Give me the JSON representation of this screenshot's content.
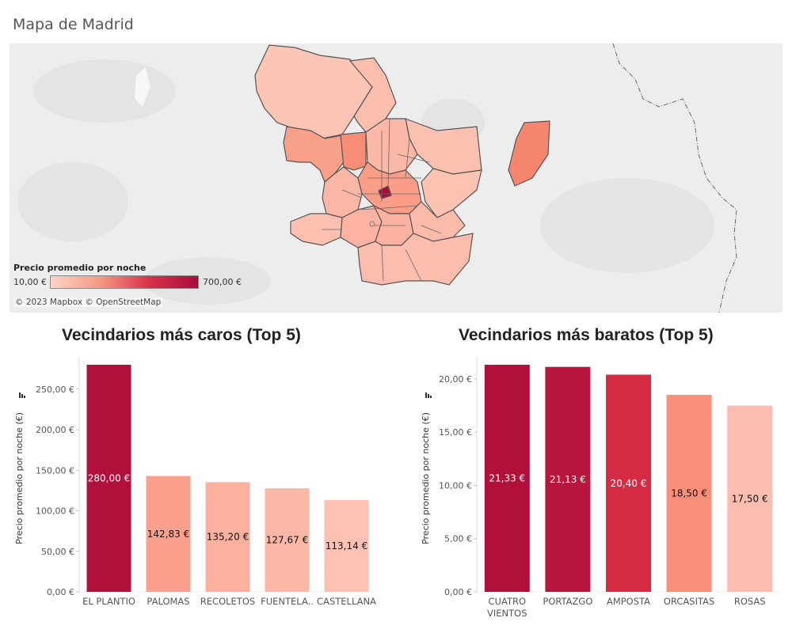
{
  "dashboard": {
    "title": "Mapa de Madrid"
  },
  "map": {
    "legend_title": "Precio promedio por noche",
    "legend_min": "10,00 €",
    "legend_max": "700,00 €",
    "attribution": "© 2023 Mapbox © OpenStreetMap",
    "color_scale": [
      "#fdd4c6",
      "#f49a84",
      "#d8324a",
      "#a80d3a"
    ]
  },
  "chart_data": [
    {
      "type": "bar",
      "title": "Vecindarios más caros (Top 5)",
      "ylabel": "Precio promedio por noche (€)",
      "categories": [
        [
          "EL PLANTIO"
        ],
        [
          "PALOMAS"
        ],
        [
          "RECOLETOS"
        ],
        [
          "FUENTELA.."
        ],
        [
          "CASTELLANA"
        ]
      ],
      "values": [
        280.0,
        142.83,
        135.2,
        127.67,
        113.14
      ],
      "value_labels": [
        "280,00 €",
        "142,83 €",
        "135,20 €",
        "127,67 €",
        "113,14 €"
      ],
      "colors": [
        "#b01039",
        "#fba08c",
        "#fcb09e",
        "#fcb7a7",
        "#fdc2b4"
      ],
      "label_colors": [
        "#ffffff",
        "#111111",
        "#111111",
        "#111111",
        "#111111"
      ],
      "ticks": [
        0,
        50,
        100,
        150,
        200,
        250
      ],
      "tick_labels": [
        "0,00 €",
        "50,00 €",
        "100,00 €",
        "150,00 €",
        "200,00 €",
        "250,00 €"
      ],
      "ylim": [
        0,
        280
      ],
      "grid": false
    },
    {
      "type": "bar",
      "title": "Vecindarios más baratos (Top 5)",
      "ylabel": "Precio promedio por noche (€)",
      "categories": [
        [
          "CUATRO",
          "VIENTOS"
        ],
        [
          "PORTAZGO"
        ],
        [
          "AMPOSTA"
        ],
        [
          "ORCASITAS"
        ],
        [
          "ROSAS"
        ]
      ],
      "values": [
        21.33,
        21.13,
        20.4,
        18.5,
        17.5
      ],
      "value_labels": [
        "21,33 €",
        "21,13 €",
        "20,40 €",
        "18,50 €",
        "17,50 €"
      ],
      "colors": [
        "#b01039",
        "#b8163d",
        "#d52b44",
        "#f98f78",
        "#fdbdb0"
      ],
      "label_colors": [
        "#ffffff",
        "#ffffff",
        "#ffffff",
        "#111111",
        "#111111"
      ],
      "ticks": [
        0,
        5,
        10,
        15,
        20
      ],
      "tick_labels": [
        "0,00 €",
        "5,00 €",
        "10,00 €",
        "15,00 €",
        "20,00 €"
      ],
      "ylim": [
        0,
        21.33
      ],
      "grid": false
    }
  ]
}
